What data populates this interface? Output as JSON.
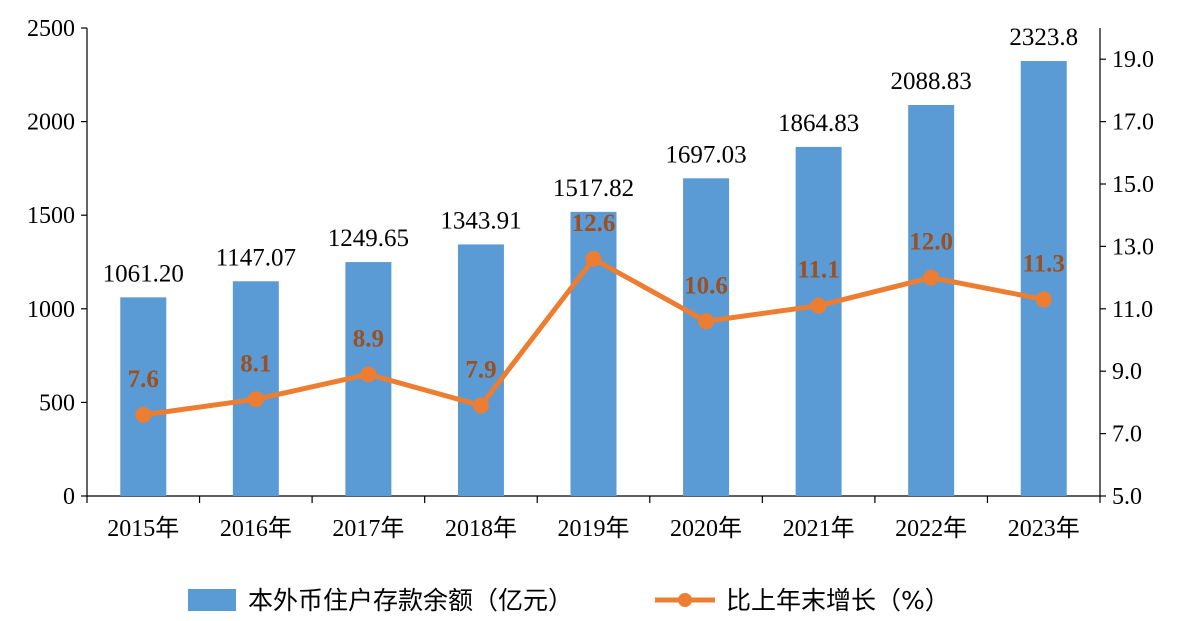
{
  "chart_data": {
    "type": "bar",
    "categories": [
      "2015年",
      "2016年",
      "2017年",
      "2018年",
      "2019年",
      "2020年",
      "2021年",
      "2022年",
      "2023年"
    ],
    "series": [
      {
        "name": "本外币住户存款余额（亿元）",
        "type": "bar",
        "axis": "left",
        "values": [
          1061.2,
          1147.07,
          1249.65,
          1343.91,
          1517.82,
          1697.03,
          1864.83,
          2088.83,
          2323.8
        ],
        "labels": [
          "1061.20",
          "1147.07",
          "1249.65",
          "1343.91",
          "1517.82",
          "1697.03",
          "1864.83",
          "2088.83",
          "2323.8"
        ]
      },
      {
        "name": "比上年末增长（%）",
        "type": "line",
        "axis": "right",
        "values": [
          7.6,
          8.1,
          8.9,
          7.9,
          12.6,
          10.6,
          11.1,
          12.0,
          11.3
        ],
        "labels": [
          "7.6",
          "8.1",
          "8.9",
          "7.9",
          "12.6",
          "10.6",
          "11.1",
          "12.0",
          "11.3"
        ]
      }
    ],
    "y_left": {
      "ylim": [
        0,
        2500
      ],
      "ticks": [
        0,
        500,
        1000,
        1500,
        2000,
        2500
      ],
      "tick_labels": [
        "0",
        "500",
        "1000",
        "1500",
        "2000",
        "2500"
      ]
    },
    "y_right": {
      "ylim": [
        5.0,
        20.0
      ],
      "ticks": [
        5.0,
        7.0,
        9.0,
        11.0,
        13.0,
        15.0,
        17.0,
        19.0
      ],
      "tick_labels": [
        "5.0",
        "7.0",
        "9.0",
        "11.0",
        "13.0",
        "15.0",
        "17.0",
        "19.0"
      ]
    },
    "grid": false,
    "legend_position": "bottom",
    "colors": {
      "bar": "#5B9BD5",
      "line": "#ED7D31",
      "line_label": "#9C4F1F",
      "bar_label": "#000000"
    }
  }
}
